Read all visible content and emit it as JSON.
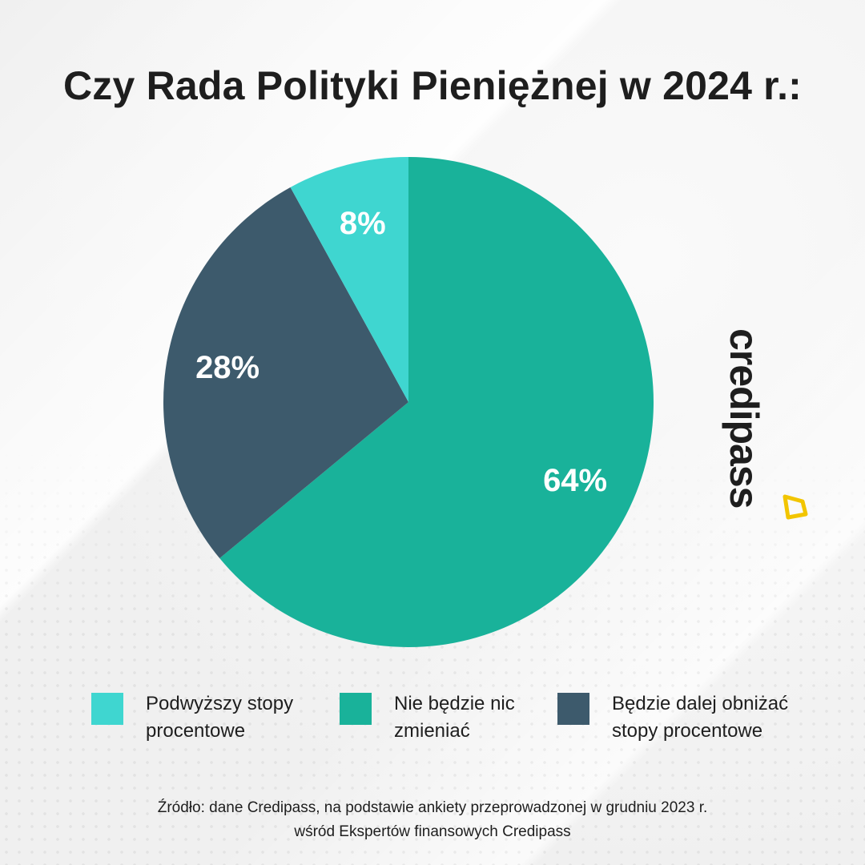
{
  "title": "Czy Rada Polityki Pieniężnej w 2024 r.:",
  "chart_data": {
    "type": "pie",
    "title": "Czy Rada Polityki Pieniężnej w 2024 r.:",
    "slices": [
      {
        "label_lines": [
          "Nie będzie nic",
          "zmieniać"
        ],
        "value": 64,
        "display": "64%",
        "color": "#19b29a"
      },
      {
        "label_lines": [
          "Będzie dalej obniżać",
          "stopy procentowe"
        ],
        "value": 28,
        "display": "28%",
        "color": "#3d5a6c"
      },
      {
        "label_lines": [
          "Podwyższy stopy",
          "procentowe"
        ],
        "value": 8,
        "display": "8%",
        "color": "#3fd6d0"
      }
    ],
    "legend_order": [
      2,
      0,
      1
    ],
    "legend_placement": "bottom",
    "start": "top",
    "direction": "clockwise"
  },
  "logo": {
    "text": "credipass",
    "accent_color": "#f2c500",
    "icon": "diamond-logo-icon"
  },
  "source": {
    "line1": "Źródło: dane Credipass, na podstawie ankiety przeprowadzonej w grudniu 2023 r.",
    "line2": "wśród Ekspertów finansowych Credipass"
  }
}
